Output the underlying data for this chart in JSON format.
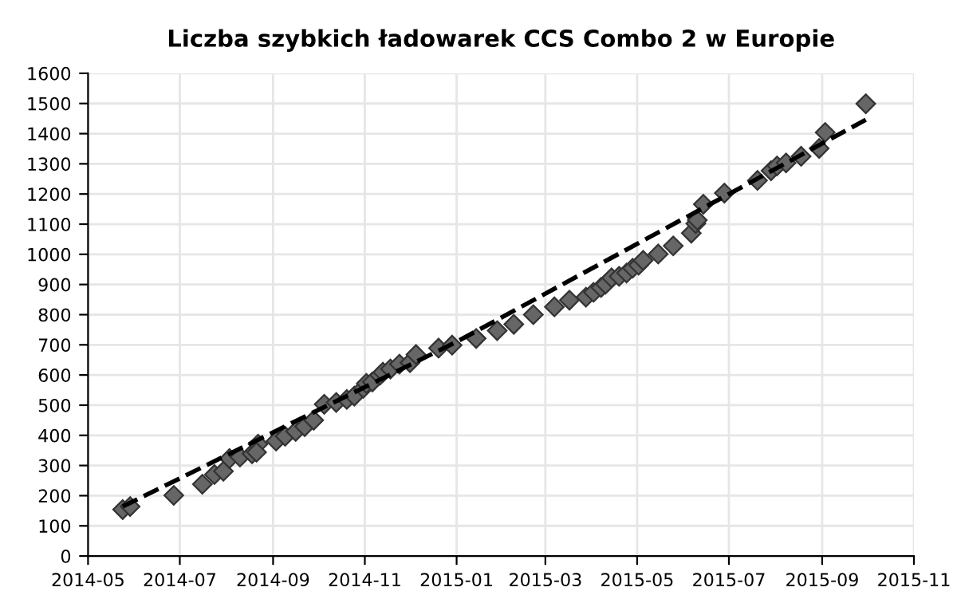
{
  "chart_data": {
    "type": "scatter",
    "title": "Liczba szybkich ładowarek CCS Combo 2 w Europie",
    "xlim": [
      "2014-05",
      "2015-11"
    ],
    "xticks": [
      "2014-05",
      "2014-07",
      "2014-09",
      "2014-11",
      "2015-01",
      "2015-03",
      "2015-05",
      "2015-07",
      "2015-09",
      "2015-11"
    ],
    "ylim": [
      0,
      1600
    ],
    "yticks": [
      0,
      100,
      200,
      300,
      400,
      500,
      600,
      700,
      800,
      900,
      1000,
      1100,
      1200,
      1300,
      1400,
      1500,
      1600
    ],
    "grid": true,
    "marker": "diamond",
    "series": [
      {
        "color": "#666666",
        "x": [
          "2014-05-24",
          "2014-05-29",
          "2014-06-27",
          "2014-07-16",
          "2014-07-24",
          "2014-07-30",
          "2014-08-03",
          "2014-08-10",
          "2014-08-18",
          "2014-08-22",
          "2014-08-21",
          "2014-09-03",
          "2014-09-09",
          "2014-09-16",
          "2014-09-22",
          "2014-09-28",
          "2014-10-05",
          "2014-10-13",
          "2014-10-20",
          "2014-10-25",
          "2014-10-31",
          "2014-11-02",
          "2014-11-06",
          "2014-11-11",
          "2014-11-13",
          "2014-11-18",
          "2014-11-24",
          "2014-12-01",
          "2014-12-05",
          "2014-12-20",
          "2014-12-29",
          "2015-01-14",
          "2015-01-28",
          "2015-02-08",
          "2015-02-21",
          "2015-03-07",
          "2015-03-17",
          "2015-03-28",
          "2015-04-02",
          "2015-04-07",
          "2015-04-10",
          "2015-04-14",
          "2015-04-19",
          "2015-04-24",
          "2015-04-28",
          "2015-05-02",
          "2015-05-05",
          "2015-05-15",
          "2015-05-25",
          "2015-06-06",
          "2015-06-09",
          "2015-06-10",
          "2015-06-14",
          "2015-06-28",
          "2015-07-20",
          "2015-07-29",
          "2015-08-02",
          "2015-08-08",
          "2015-08-18",
          "2015-08-30",
          "2015-09-03",
          "2015-09-30"
        ],
        "values": [
          154,
          164,
          201,
          238,
          270,
          281,
          323,
          328,
          339,
          371,
          344,
          381,
          397,
          413,
          429,
          450,
          503,
          509,
          519,
          530,
          556,
          572,
          577,
          599,
          609,
          620,
          636,
          641,
          668,
          689,
          699,
          721,
          747,
          768,
          800,
          826,
          848,
          858,
          874,
          890,
          901,
          922,
          927,
          938,
          954,
          964,
          980,
          1001,
          1028,
          1070,
          1102,
          1113,
          1166,
          1203,
          1245,
          1277,
          1293,
          1303,
          1325,
          1351,
          1404,
          1499
        ]
      },
      {
        "type": "line",
        "color": "#000000",
        "line_style": "dashed",
        "marker": "none",
        "x": [
          "2014-05-24",
          "2015-01-01",
          "2015-09-30"
        ],
        "values": [
          164,
          710,
          1446
        ]
      }
    ]
  }
}
